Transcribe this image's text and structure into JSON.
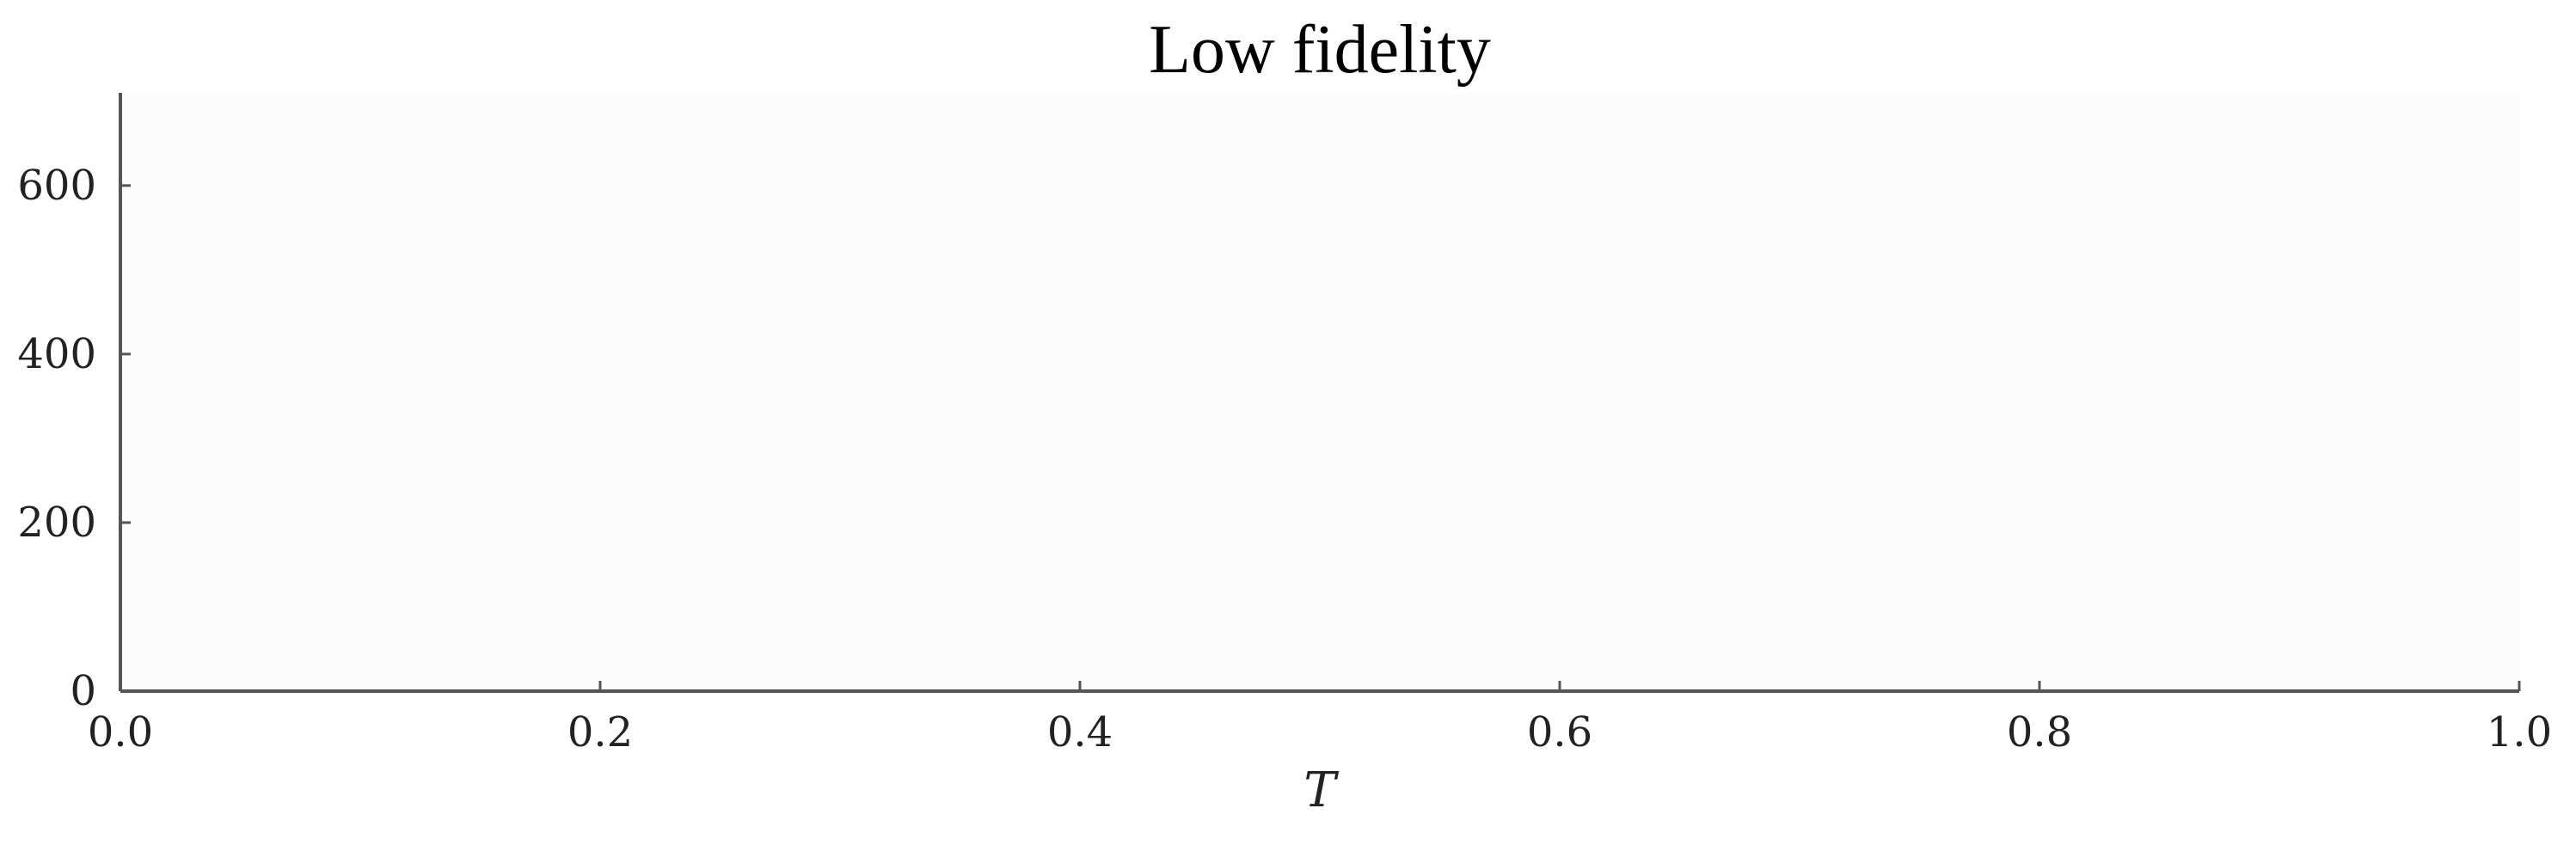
{
  "chart_data": {
    "type": "line",
    "title": "Low fidelity",
    "xlabel": "T",
    "ylabel": "",
    "xlim": [
      0.0,
      1.0
    ],
    "ylim": [
      0,
      710
    ],
    "xticks": [
      0.0,
      0.2,
      0.4,
      0.6,
      0.8,
      1.0
    ],
    "xtick_labels": [
      "0.0",
      "0.2",
      "0.4",
      "0.6",
      "0.8",
      "1.0"
    ],
    "yticks": [
      0,
      200,
      400,
      600
    ],
    "ytick_labels": [
      "0",
      "200",
      "400",
      "600"
    ],
    "series": [],
    "grid": false,
    "legend": "none"
  },
  "colors": {
    "plot_background": "#fcfcfc",
    "axis": "#555555",
    "text": "#222222"
  }
}
